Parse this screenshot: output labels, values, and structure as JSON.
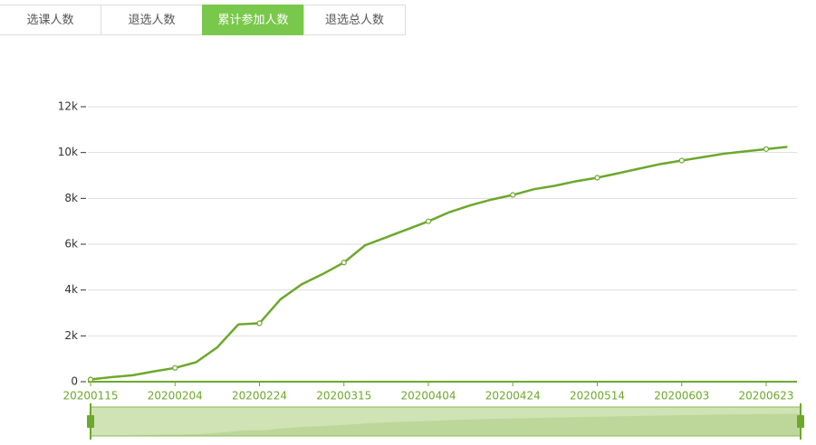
{
  "tabs": {
    "items": [
      "选课人数",
      "退选人数",
      "累计参加人数",
      "退选总人数"
    ],
    "active": 2
  },
  "chart_data": {
    "type": "line",
    "color": "#6ca82c",
    "grid": true,
    "categories": [
      "20200115",
      null,
      null,
      null,
      "20200204",
      null,
      null,
      null,
      "20200224",
      null,
      null,
      null,
      "20200315",
      null,
      null,
      null,
      "20200404",
      null,
      null,
      null,
      "20200424",
      null,
      null,
      null,
      "20200514",
      null,
      null,
      null,
      "20200603",
      null,
      null,
      null,
      "20200623",
      null
    ],
    "values": [
      100,
      200,
      280,
      450,
      600,
      850,
      1500,
      2500,
      2550,
      3600,
      4250,
      4700,
      5200,
      5950,
      6300,
      6650,
      7000,
      7400,
      7700,
      7950,
      8150,
      8400,
      8550,
      8750,
      8900,
      9100,
      9300,
      9500,
      9650,
      9800,
      9950,
      10050,
      10150,
      10250
    ],
    "ylim": [
      0,
      12000
    ],
    "yticks": [
      0,
      {
        "value": 2000,
        "label": "2k"
      },
      {
        "value": 4000,
        "label": "4k"
      },
      {
        "value": 6000,
        "label": "6k"
      },
      {
        "value": 8000,
        "label": "8k"
      },
      {
        "value": 10000,
        "label": "10k"
      },
      {
        "value": 12000,
        "label": "12k"
      }
    ]
  }
}
